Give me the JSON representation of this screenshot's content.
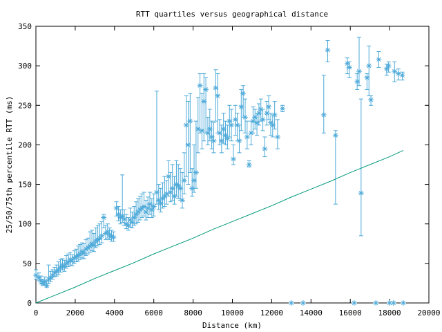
{
  "chart_data": {
    "type": "scatter",
    "title": "RTT quartiles versus geographical distance",
    "xlabel": "Distance (km)",
    "ylabel": "25/50/75th percentile RTT (ms)",
    "xlim": [
      0,
      20000
    ],
    "ylim": [
      0,
      350
    ],
    "xticks": [
      "0",
      "2000",
      "4000",
      "6000",
      "8000",
      "10000",
      "12000",
      "14000",
      "16000",
      "18000",
      "20000"
    ],
    "yticks": [
      "0",
      "50",
      "100",
      "150",
      "200",
      "250",
      "300",
      "350"
    ],
    "grid": false,
    "legend": "none",
    "colors": {
      "points": "#4aa8d8",
      "line": "#009a7a",
      "frame": "#000000"
    },
    "series": [
      {
        "type": "errorbar",
        "points": [
          [
            0,
            35,
            30,
            42
          ],
          [
            150,
            32,
            28,
            38
          ],
          [
            250,
            28,
            24,
            34
          ],
          [
            350,
            25,
            22,
            30
          ],
          [
            450,
            27,
            23,
            33
          ],
          [
            550,
            22,
            20,
            28
          ],
          [
            650,
            30,
            25,
            48
          ],
          [
            750,
            32,
            27,
            40
          ],
          [
            850,
            35,
            30,
            42
          ],
          [
            950,
            38,
            33,
            45
          ],
          [
            1050,
            40,
            34,
            48
          ],
          [
            1150,
            42,
            36,
            52
          ],
          [
            1250,
            45,
            39,
            55
          ],
          [
            1350,
            48,
            42,
            56
          ],
          [
            1450,
            46,
            40,
            54
          ],
          [
            1550,
            50,
            44,
            60
          ],
          [
            1650,
            52,
            46,
            62
          ],
          [
            1750,
            55,
            48,
            64
          ],
          [
            1850,
            53,
            47,
            61
          ],
          [
            1950,
            57,
            50,
            66
          ],
          [
            2050,
            58,
            52,
            68
          ],
          [
            2150,
            60,
            53,
            72
          ],
          [
            2250,
            62,
            55,
            74
          ],
          [
            2350,
            65,
            57,
            76
          ],
          [
            2450,
            63,
            56,
            75
          ],
          [
            2550,
            68,
            60,
            80
          ],
          [
            2650,
            70,
            62,
            82
          ],
          [
            2750,
            72,
            64,
            90
          ],
          [
            2850,
            75,
            66,
            92
          ],
          [
            2950,
            73,
            65,
            88
          ],
          [
            3050,
            78,
            70,
            95
          ],
          [
            3150,
            80,
            72,
            98
          ],
          [
            3250,
            82,
            74,
            100
          ],
          [
            3350,
            85,
            76,
            103
          ],
          [
            3450,
            108,
            95,
            112
          ],
          [
            3550,
            88,
            80,
            98
          ],
          [
            3650,
            90,
            82,
            100
          ],
          [
            3750,
            86,
            80,
            95
          ],
          [
            3850,
            84,
            78,
            92
          ],
          [
            3950,
            83,
            78,
            90
          ],
          [
            4100,
            120,
            110,
            128
          ],
          [
            4200,
            112,
            104,
            122
          ],
          [
            4300,
            108,
            100,
            118
          ],
          [
            4400,
            110,
            102,
            162
          ],
          [
            4500,
            106,
            98,
            118
          ],
          [
            4600,
            100,
            94,
            112
          ],
          [
            4700,
            98,
            92,
            108
          ],
          [
            4800,
            105,
            96,
            120
          ],
          [
            4900,
            102,
            95,
            115
          ],
          [
            5000,
            108,
            98,
            122
          ],
          [
            5100,
            112,
            100,
            128
          ],
          [
            5200,
            115,
            102,
            132
          ],
          [
            5300,
            118,
            105,
            135
          ],
          [
            5400,
            120,
            108,
            138
          ],
          [
            5500,
            122,
            110,
            140
          ],
          [
            5600,
            115,
            105,
            130
          ],
          [
            5700,
            120,
            108,
            134
          ],
          [
            5800,
            125,
            112,
            140
          ],
          [
            5900,
            118,
            108,
            132
          ],
          [
            6000,
            122,
            110,
            138
          ],
          [
            6150,
            140,
            125,
            268
          ],
          [
            6250,
            130,
            118,
            150
          ],
          [
            6350,
            126,
            115,
            145
          ],
          [
            6450,
            132,
            120,
            152
          ],
          [
            6550,
            135,
            122,
            160
          ],
          [
            6650,
            138,
            125,
            155
          ],
          [
            6750,
            160,
            135,
            180
          ],
          [
            6850,
            140,
            128,
            165
          ],
          [
            6950,
            145,
            130,
            175
          ],
          [
            7050,
            135,
            125,
            160
          ],
          [
            7150,
            150,
            135,
            180
          ],
          [
            7250,
            148,
            132,
            175
          ],
          [
            7350,
            145,
            130,
            170
          ],
          [
            7450,
            130,
            120,
            165
          ],
          [
            7550,
            155,
            138,
            190
          ],
          [
            7650,
            225,
            160,
            262
          ],
          [
            7750,
            200,
            150,
            255
          ],
          [
            7850,
            230,
            165,
            265
          ],
          [
            7950,
            145,
            135,
            170
          ],
          [
            8050,
            155,
            140,
            200
          ],
          [
            8150,
            165,
            145,
            230
          ],
          [
            8250,
            220,
            190,
            260
          ],
          [
            8350,
            275,
            215,
            290
          ],
          [
            8450,
            218,
            195,
            265
          ],
          [
            8550,
            255,
            205,
            290
          ],
          [
            8650,
            270,
            215,
            285
          ],
          [
            8750,
            215,
            200,
            235
          ],
          [
            8850,
            220,
            205,
            245
          ],
          [
            8950,
            210,
            195,
            230
          ],
          [
            9050,
            205,
            190,
            228
          ],
          [
            9150,
            272,
            230,
            295
          ],
          [
            9250,
            262,
            215,
            290
          ],
          [
            9350,
            215,
            200,
            232
          ],
          [
            9450,
            205,
            190,
            225
          ],
          [
            9550,
            220,
            202,
            240
          ],
          [
            9650,
            212,
            200,
            230
          ],
          [
            9750,
            208,
            195,
            225
          ],
          [
            9850,
            230,
            210,
            250
          ],
          [
            9950,
            225,
            205,
            245
          ],
          [
            10050,
            182,
            175,
            200
          ],
          [
            10150,
            232,
            212,
            250
          ],
          [
            10250,
            225,
            205,
            240
          ],
          [
            10350,
            205,
            190,
            225
          ],
          [
            10450,
            248,
            218,
            270
          ],
          [
            10550,
            265,
            235,
            275
          ],
          [
            10650,
            235,
            215,
            258
          ],
          [
            10750,
            210,
            195,
            230
          ],
          [
            10850,
            175,
            172,
            180
          ],
          [
            10950,
            215,
            200,
            230
          ],
          [
            11050,
            230,
            215,
            248
          ],
          [
            11150,
            235,
            220,
            245
          ],
          [
            11250,
            228,
            212,
            240
          ],
          [
            11350,
            240,
            225,
            252
          ],
          [
            11450,
            245,
            230,
            258
          ],
          [
            11550,
            232,
            218,
            245
          ],
          [
            11650,
            195,
            185,
            210
          ],
          [
            11750,
            240,
            225,
            255
          ],
          [
            11850,
            248,
            232,
            262
          ],
          [
            11950,
            228,
            212,
            240
          ],
          [
            12050,
            225,
            210,
            238
          ],
          [
            12150,
            238,
            220,
            255
          ],
          [
            12300,
            210,
            195,
            232
          ],
          [
            12550,
            246,
            242,
            250
          ],
          [
            14650,
            238,
            215,
            288
          ],
          [
            14850,
            320,
            305,
            332
          ],
          [
            15250,
            212,
            125,
            218
          ],
          [
            15850,
            303,
            290,
            310
          ],
          [
            15950,
            298,
            285,
            305
          ],
          [
            16350,
            280,
            270,
            290
          ],
          [
            16450,
            293,
            275,
            336
          ],
          [
            16550,
            139,
            85,
            258
          ],
          [
            16850,
            285,
            270,
            290
          ],
          [
            16950,
            300,
            262,
            325
          ],
          [
            17050,
            257,
            250,
            262
          ],
          [
            17450,
            308,
            298,
            318
          ],
          [
            17850,
            296,
            288,
            302
          ],
          [
            17950,
            300,
            292,
            305
          ],
          [
            18250,
            293,
            280,
            305
          ],
          [
            18450,
            290,
            282,
            296
          ],
          [
            18650,
            288,
            282,
            292
          ]
        ]
      },
      {
        "type": "scatter",
        "points": [
          [
            13000,
            0
          ],
          [
            13600,
            0
          ],
          [
            16200,
            0
          ],
          [
            17300,
            0
          ],
          [
            18000,
            0
          ],
          [
            18200,
            0
          ],
          [
            18700,
            0
          ]
        ]
      },
      {
        "type": "line",
        "points": [
          [
            0,
            0
          ],
          [
            1000,
            10
          ],
          [
            2000,
            20
          ],
          [
            3000,
            31
          ],
          [
            4000,
            41
          ],
          [
            5000,
            51
          ],
          [
            6000,
            62
          ],
          [
            7000,
            72
          ],
          [
            8000,
            82
          ],
          [
            9000,
            93
          ],
          [
            10000,
            103
          ],
          [
            11000,
            113
          ],
          [
            12000,
            123
          ],
          [
            13000,
            134
          ],
          [
            14000,
            144
          ],
          [
            15000,
            154
          ],
          [
            16000,
            165
          ],
          [
            17000,
            175
          ],
          [
            18000,
            185
          ],
          [
            18700,
            193
          ]
        ]
      }
    ]
  }
}
